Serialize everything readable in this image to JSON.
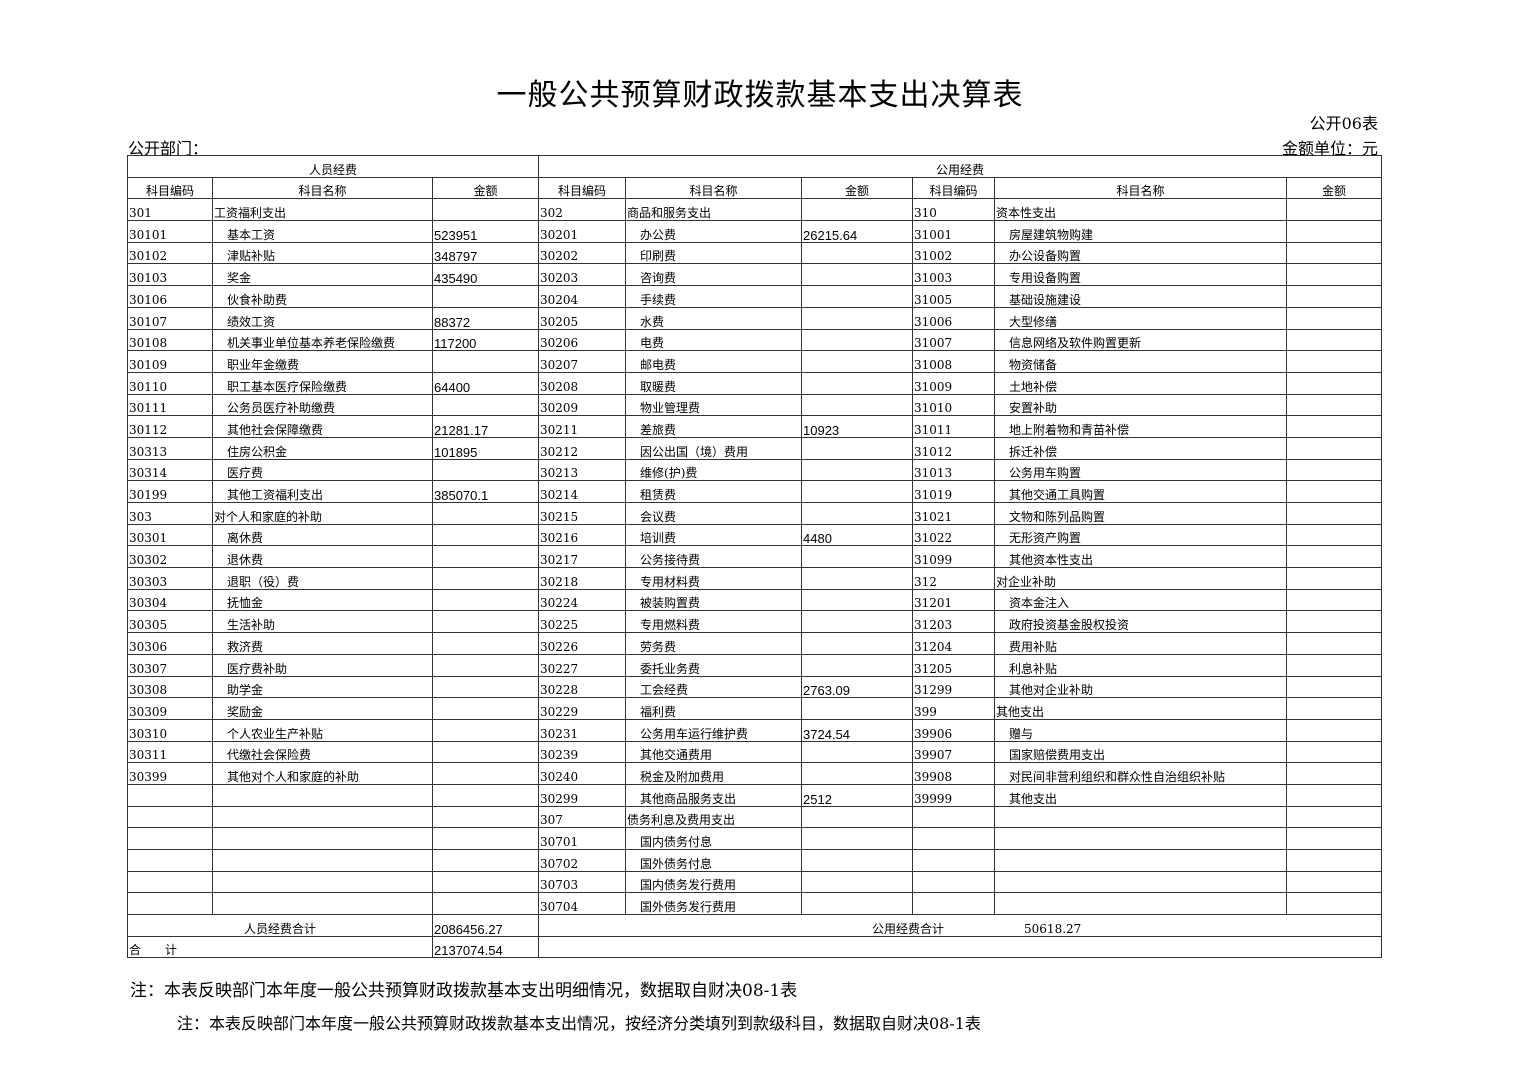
{
  "title": "一般公共预算财政拨款基本支出决算表",
  "form_no": "公开06表",
  "dept_label": "公开部门：",
  "unit_label": "金额单位：元",
  "group_headers": {
    "personnel": "人员经费",
    "public": "公用经费"
  },
  "col_headers": {
    "code": "科目编码",
    "name": "科目名称",
    "amount": "金额"
  },
  "rows": [
    [
      [
        "301",
        "工资福利支出",
        "",
        0
      ],
      [
        "302",
        "商品和服务支出",
        "",
        0
      ],
      [
        "310",
        "资本性支出",
        "",
        0
      ]
    ],
    [
      [
        "30101",
        "基本工资",
        "523951",
        1
      ],
      [
        "30201",
        "办公费",
        "26215.64",
        1
      ],
      [
        "31001",
        "房屋建筑物购建",
        "",
        1
      ]
    ],
    [
      [
        "30102",
        "津贴补贴",
        "348797",
        1
      ],
      [
        "30202",
        "印刷费",
        "",
        1
      ],
      [
        "31002",
        "办公设备购置",
        "",
        1
      ]
    ],
    [
      [
        "30103",
        "奖金",
        "435490",
        1
      ],
      [
        "30203",
        "咨询费",
        "",
        1
      ],
      [
        "31003",
        "专用设备购置",
        "",
        1
      ]
    ],
    [
      [
        "30106",
        "伙食补助费",
        "",
        1
      ],
      [
        "30204",
        "手续费",
        "",
        1
      ],
      [
        "31005",
        "基础设施建设",
        "",
        1
      ]
    ],
    [
      [
        "30107",
        "绩效工资",
        "88372",
        1
      ],
      [
        "30205",
        "水费",
        "",
        1
      ],
      [
        "31006",
        "大型修缮",
        "",
        1
      ]
    ],
    [
      [
        "30108",
        "机关事业单位基本养老保险缴费",
        "117200",
        1
      ],
      [
        "30206",
        "电费",
        "",
        1
      ],
      [
        "31007",
        "信息网络及软件购置更新",
        "",
        1
      ]
    ],
    [
      [
        "30109",
        "职业年金缴费",
        "",
        1
      ],
      [
        "30207",
        "邮电费",
        "",
        1
      ],
      [
        "31008",
        "物资储备",
        "",
        1
      ]
    ],
    [
      [
        "30110",
        "职工基本医疗保险缴费",
        "64400",
        1
      ],
      [
        "30208",
        "取暖费",
        "",
        1
      ],
      [
        "31009",
        "土地补偿",
        "",
        1
      ]
    ],
    [
      [
        "30111",
        "公务员医疗补助缴费",
        "",
        1
      ],
      [
        "30209",
        "物业管理费",
        "",
        1
      ],
      [
        "31010",
        "安置补助",
        "",
        1
      ]
    ],
    [
      [
        "30112",
        "其他社会保障缴费",
        "21281.17",
        1
      ],
      [
        "30211",
        "差旅费",
        "10923",
        1
      ],
      [
        "31011",
        "地上附着物和青苗补偿",
        "",
        1
      ]
    ],
    [
      [
        "30313",
        "住房公积金",
        "101895",
        1
      ],
      [
        "30212",
        "因公出国（境）费用",
        "",
        1
      ],
      [
        "31012",
        "拆迁补偿",
        "",
        1
      ]
    ],
    [
      [
        "30314",
        "医疗费",
        "",
        1
      ],
      [
        "30213",
        "维修(护)费",
        "",
        1
      ],
      [
        "31013",
        "公务用车购置",
        "",
        1
      ]
    ],
    [
      [
        "30199",
        "其他工资福利支出",
        "385070.1",
        1
      ],
      [
        "30214",
        "租赁费",
        "",
        1
      ],
      [
        "31019",
        "其他交通工具购置",
        "",
        1
      ]
    ],
    [
      [
        "303",
        "对个人和家庭的补助",
        "",
        0
      ],
      [
        "30215",
        "会议费",
        "",
        1
      ],
      [
        "31021",
        "文物和陈列品购置",
        "",
        1
      ]
    ],
    [
      [
        "30301",
        "离休费",
        "",
        1
      ],
      [
        "30216",
        "培训费",
        "4480",
        1
      ],
      [
        "31022",
        "无形资产购置",
        "",
        1
      ]
    ],
    [
      [
        "30302",
        "退休费",
        "",
        1
      ],
      [
        "30217",
        "公务接待费",
        "",
        1
      ],
      [
        "31099",
        "其他资本性支出",
        "",
        1
      ]
    ],
    [
      [
        "30303",
        "退职（役）费",
        "",
        1
      ],
      [
        "30218",
        "专用材料费",
        "",
        1
      ],
      [
        "312",
        "对企业补助",
        "",
        0
      ]
    ],
    [
      [
        "30304",
        "抚恤金",
        "",
        1
      ],
      [
        "30224",
        "被装购置费",
        "",
        1
      ],
      [
        "31201",
        "资本金注入",
        "",
        1
      ]
    ],
    [
      [
        "30305",
        "生活补助",
        "",
        1
      ],
      [
        "30225",
        "专用燃料费",
        "",
        1
      ],
      [
        "31203",
        "政府投资基金股权投资",
        "",
        1
      ]
    ],
    [
      [
        "30306",
        "救济费",
        "",
        1
      ],
      [
        "30226",
        "劳务费",
        "",
        1
      ],
      [
        "31204",
        "费用补贴",
        "",
        1
      ]
    ],
    [
      [
        "30307",
        "医疗费补助",
        "",
        1
      ],
      [
        "30227",
        "委托业务费",
        "",
        1
      ],
      [
        "31205",
        "利息补贴",
        "",
        1
      ]
    ],
    [
      [
        "30308",
        "助学金",
        "",
        1
      ],
      [
        "30228",
        "工会经费",
        "2763.09",
        1
      ],
      [
        "31299",
        "其他对企业补助",
        "",
        1
      ]
    ],
    [
      [
        "30309",
        "奖励金",
        "",
        1
      ],
      [
        "30229",
        "福利费",
        "",
        1
      ],
      [
        "399",
        "其他支出",
        "",
        0
      ]
    ],
    [
      [
        "30310",
        "个人农业生产补贴",
        "",
        1
      ],
      [
        "30231",
        "公务用车运行维护费",
        "3724.54",
        1
      ],
      [
        "39906",
        "赠与",
        "",
        1
      ]
    ],
    [
      [
        "30311",
        "代缴社会保险费",
        "",
        1
      ],
      [
        "30239",
        "其他交通费用",
        "",
        1
      ],
      [
        "39907",
        "国家赔偿费用支出",
        "",
        1
      ]
    ],
    [
      [
        "30399",
        "其他对个人和家庭的补助",
        "",
        1
      ],
      [
        "30240",
        "税金及附加费用",
        "",
        1
      ],
      [
        "39908",
        "对民间非营利组织和群众性自治组织补贴",
        "",
        1
      ]
    ],
    [
      [
        "",
        "",
        "",
        0
      ],
      [
        "30299",
        "其他商品服务支出",
        "2512",
        1
      ],
      [
        "39999",
        "其他支出",
        "",
        1
      ]
    ],
    [
      [
        "",
        "",
        "",
        0
      ],
      [
        "307",
        "债务利息及费用支出",
        "",
        0
      ],
      [
        "",
        "",
        "",
        0
      ]
    ],
    [
      [
        "",
        "",
        "",
        0
      ],
      [
        "30701",
        "国内债务付息",
        "",
        1
      ],
      [
        "",
        "",
        "",
        0
      ]
    ],
    [
      [
        "",
        "",
        "",
        0
      ],
      [
        "30702",
        "国外债务付息",
        "",
        1
      ],
      [
        "",
        "",
        "",
        0
      ]
    ],
    [
      [
        "",
        "",
        "",
        0
      ],
      [
        "30703",
        "国内债务发行费用",
        "",
        1
      ],
      [
        "",
        "",
        "",
        0
      ]
    ],
    [
      [
        "",
        "",
        "",
        0
      ],
      [
        "30704",
        "国外债务发行费用",
        "",
        1
      ],
      [
        "",
        "",
        "",
        0
      ]
    ]
  ],
  "totals": {
    "personnel_label": "人员经费合计",
    "personnel_amount": "2086456.27",
    "public_label": "公用经费合计",
    "public_amount": "50618.27",
    "grand_label": "合　　计",
    "grand_amount": "2137074.54"
  },
  "notes": [
    "注：本表反映部门本年度一般公共预算财政拨款基本支出明细情况，数据取自财决08-1表",
    "注：本表反映部门本年度一般公共预算财政拨款基本支出情况，按经济分类填列到款级科目，数据取自财决08-1表"
  ]
}
